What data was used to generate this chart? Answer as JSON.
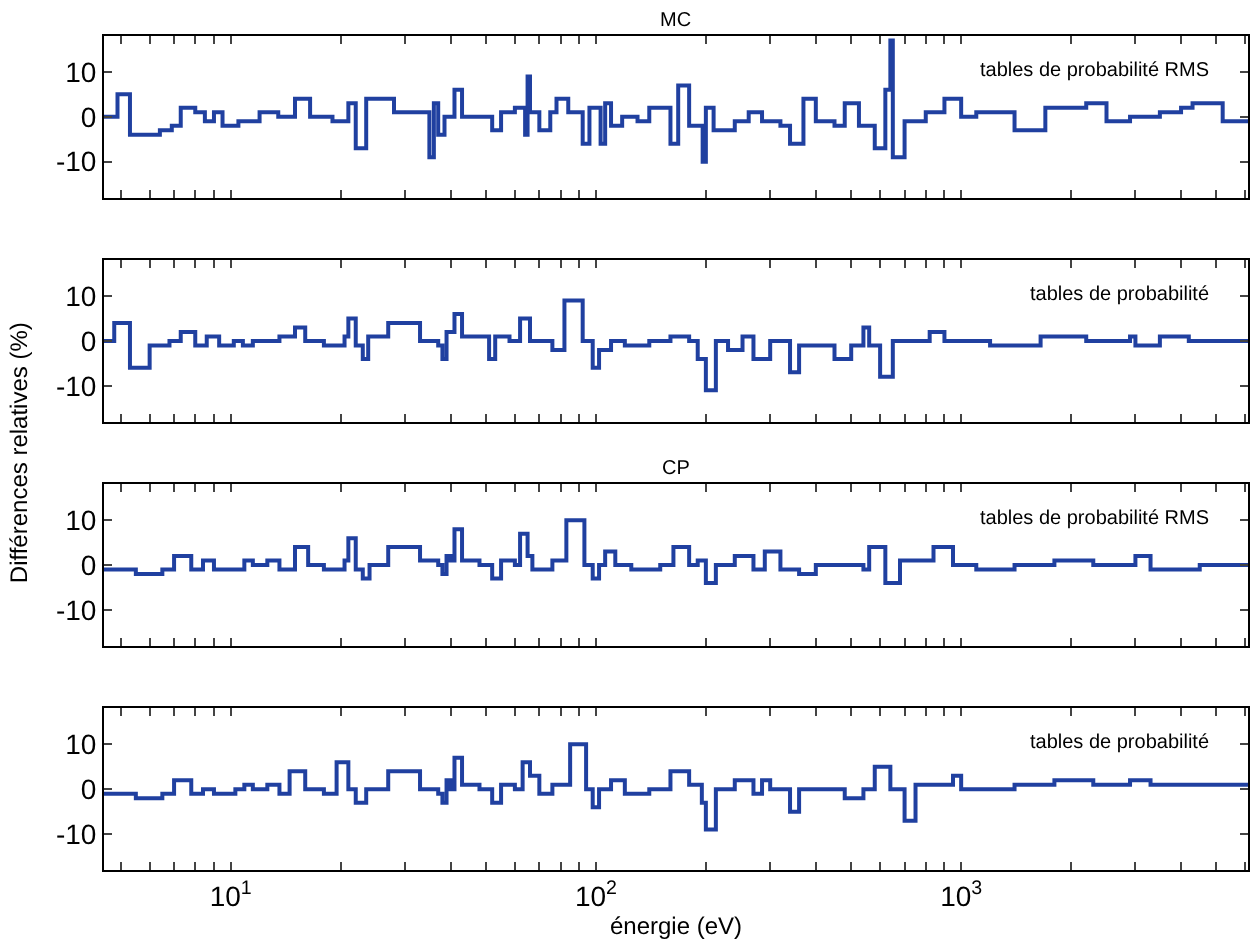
{
  "chart_data": [
    {
      "type": "step",
      "title": "MC",
      "color": "#2040a0",
      "log": "x",
      "line_style": "solid",
      "tick_labels": "y",
      "xlim": [
        4.5,
        6100
      ],
      "ylim": [
        -18,
        18
      ],
      "yticks": [
        -10,
        0,
        10
      ],
      "xticks": [
        {
          "value": 5,
          "label": null
        },
        {
          "value": 6,
          "label": null
        },
        {
          "value": 7,
          "label": null
        },
        {
          "value": 8,
          "label": null
        },
        {
          "value": 9,
          "label": null
        },
        {
          "value": 10,
          "label": "10$^{1}$"
        },
        {
          "value": 20,
          "label": null
        },
        {
          "value": 30,
          "label": null
        },
        {
          "value": 40,
          "label": null
        },
        {
          "value": 50,
          "label": null
        },
        {
          "value": 60,
          "label": null
        },
        {
          "value": 70,
          "label": null
        },
        {
          "value": 80,
          "label": null
        },
        {
          "value": 90,
          "label": null
        },
        {
          "value": 100,
          "label": "10$^{2}$"
        },
        {
          "value": 200,
          "label": null
        },
        {
          "value": 300,
          "label": null
        },
        {
          "value": 400,
          "label": null
        },
        {
          "value": 500,
          "label": null
        },
        {
          "value": 600,
          "label": null
        },
        {
          "value": 700,
          "label": null
        },
        {
          "value": 800,
          "label": null
        },
        {
          "value": 900,
          "label": null
        },
        {
          "value": 1000,
          "label": "10$^{3}$"
        },
        {
          "value": 2000,
          "label": null
        },
        {
          "value": 3000,
          "label": null
        },
        {
          "value": 4000,
          "label": null
        },
        {
          "value": 5000,
          "label": null
        },
        {
          "value": 6000,
          "label": null
        }
      ],
      "annotations": [
        "tables de probabilité RMS"
      ],
      "x": [
        4.5,
        4.9,
        5.3,
        6.4,
        6.9,
        7.3,
        8.0,
        8.5,
        9.0,
        9.5,
        10.5,
        12,
        13.5,
        15,
        16.5,
        19,
        21,
        22,
        23.5,
        28,
        35,
        36,
        37,
        38.5,
        41,
        43,
        52,
        55,
        60,
        64,
        65,
        66,
        70,
        75,
        78,
        84,
        92,
        96,
        103,
        106,
        110,
        118,
        130,
        140,
        160,
        168,
        180,
        196,
        200,
        210,
        240,
        262,
        285,
        320,
        340,
        370,
        400,
        450,
        480,
        525,
        580,
        620,
        640,
        650,
        700,
        800,
        900,
        1000,
        1100,
        1400,
        1700,
        2200,
        2500,
        2900,
        3500,
        4000,
        4300,
        5200,
        6100
      ],
      "values": [
        0,
        5,
        -4,
        -3,
        -2,
        2,
        1,
        -1,
        1,
        -2,
        -1,
        1,
        0,
        4,
        0,
        -1,
        3,
        -7,
        4,
        1,
        -9,
        3,
        -4,
        0,
        6,
        0,
        -3,
        1,
        2,
        -4,
        9,
        1,
        -3,
        1,
        4,
        1,
        -6,
        2,
        -6,
        3,
        -2,
        0,
        -1,
        2,
        -6,
        7,
        -2,
        -10,
        2,
        -3,
        -1,
        1,
        -1,
        -2,
        -6,
        4,
        -1,
        -2,
        3,
        -2,
        -7,
        6,
        17,
        -9,
        -1,
        1,
        4,
        0,
        1,
        -3,
        2,
        3,
        -1,
        0,
        1,
        2,
        3,
        -1,
        -1
      ]
    },
    {
      "type": "step",
      "color": "#2040a0",
      "log": "x",
      "line_style": "solid",
      "tick_labels": "y",
      "xlim": [
        4.5,
        6100
      ],
      "ylim": [
        -18,
        18
      ],
      "yticks": [
        -10,
        0,
        10
      ],
      "ylabel": "Différences relatives (%)",
      "xticks": [
        {
          "value": 5,
          "label": null
        },
        {
          "value": 6,
          "label": null
        },
        {
          "value": 7,
          "label": null
        },
        {
          "value": 8,
          "label": null
        },
        {
          "value": 9,
          "label": null
        },
        {
          "value": 10,
          "label": "10$^{1}$"
        },
        {
          "value": 20,
          "label": null
        },
        {
          "value": 30,
          "label": null
        },
        {
          "value": 40,
          "label": null
        },
        {
          "value": 50,
          "label": null
        },
        {
          "value": 60,
          "label": null
        },
        {
          "value": 70,
          "label": null
        },
        {
          "value": 80,
          "label": null
        },
        {
          "value": 90,
          "label": null
        },
        {
          "value": 100,
          "label": "10$^{2}$"
        },
        {
          "value": 200,
          "label": null
        },
        {
          "value": 300,
          "label": null
        },
        {
          "value": 400,
          "label": null
        },
        {
          "value": 500,
          "label": null
        },
        {
          "value": 600,
          "label": null
        },
        {
          "value": 700,
          "label": null
        },
        {
          "value": 800,
          "label": null
        },
        {
          "value": 900,
          "label": null
        },
        {
          "value": 1000,
          "label": "10$^{3}$"
        },
        {
          "value": 2000,
          "label": null
        },
        {
          "value": 3000,
          "label": null
        },
        {
          "value": 4000,
          "label": null
        },
        {
          "value": 5000,
          "label": null
        },
        {
          "value": 6000,
          "label": null
        }
      ],
      "annotations": [
        "tables de probabilité"
      ],
      "x": [
        4.5,
        4.8,
        5.3,
        6.0,
        6.8,
        7.3,
        8.0,
        8.6,
        9.3,
        10.2,
        10.8,
        11.5,
        13.6,
        15,
        16,
        18,
        20.5,
        21,
        22,
        23,
        23.8,
        27,
        33,
        37,
        38,
        39,
        41,
        43,
        47,
        51,
        53,
        58,
        62,
        66,
        76,
        82,
        92,
        98,
        102,
        110,
        120,
        140,
        160,
        180,
        190,
        200,
        213,
        230,
        252,
        270,
        300,
        340,
        360,
        450,
        500,
        540,
        560,
        600,
        650,
        820,
        900,
        1000,
        1200,
        1650,
        2200,
        2900,
        3000,
        3500,
        4200,
        6100
      ],
      "values": [
        0,
        4,
        -6,
        -1,
        0,
        2,
        -1,
        1,
        -1,
        0,
        -1,
        0,
        1,
        3,
        0,
        -1,
        1,
        5,
        -1,
        -4,
        1,
        4,
        0,
        -1,
        -4,
        2,
        6,
        1,
        1,
        -4,
        1,
        0,
        5,
        0,
        -2,
        9,
        0,
        -6,
        -2,
        0,
        -1,
        0,
        1,
        0,
        -4,
        -11,
        0,
        -2,
        1,
        -4,
        0,
        -7,
        -1,
        -4,
        -1,
        3,
        -1,
        -8,
        0,
        2,
        0,
        0,
        -1,
        1,
        0,
        1,
        -1,
        1,
        0,
        0
      ]
    },
    {
      "type": "step",
      "title": "CP",
      "color": "#2040a0",
      "log": "x",
      "line_style": "solid",
      "tick_labels": "y",
      "xlim": [
        4.5,
        6100
      ],
      "ylim": [
        -18,
        18
      ],
      "yticks": [
        -10,
        0,
        10
      ],
      "xticks": [
        {
          "value": 5,
          "label": null
        },
        {
          "value": 6,
          "label": null
        },
        {
          "value": 7,
          "label": null
        },
        {
          "value": 8,
          "label": null
        },
        {
          "value": 9,
          "label": null
        },
        {
          "value": 10,
          "label": "10$^{1}$"
        },
        {
          "value": 20,
          "label": null
        },
        {
          "value": 30,
          "label": null
        },
        {
          "value": 40,
          "label": null
        },
        {
          "value": 50,
          "label": null
        },
        {
          "value": 60,
          "label": null
        },
        {
          "value": 70,
          "label": null
        },
        {
          "value": 80,
          "label": null
        },
        {
          "value": 90,
          "label": null
        },
        {
          "value": 100,
          "label": "10$^{2}$"
        },
        {
          "value": 200,
          "label": null
        },
        {
          "value": 300,
          "label": null
        },
        {
          "value": 400,
          "label": null
        },
        {
          "value": 500,
          "label": null
        },
        {
          "value": 600,
          "label": null
        },
        {
          "value": 700,
          "label": null
        },
        {
          "value": 800,
          "label": null
        },
        {
          "value": 900,
          "label": null
        },
        {
          "value": 1000,
          "label": "10$^{3}$"
        },
        {
          "value": 2000,
          "label": null
        },
        {
          "value": 3000,
          "label": null
        },
        {
          "value": 4000,
          "label": null
        },
        {
          "value": 5000,
          "label": null
        },
        {
          "value": 6000,
          "label": null
        }
      ],
      "annotations": [
        "tables de probabilité RMS"
      ],
      "x": [
        4.5,
        5.5,
        6.5,
        7.0,
        7.8,
        8.4,
        9.0,
        10.3,
        10.9,
        11.5,
        12.6,
        13.6,
        15,
        16.3,
        18,
        20.5,
        21,
        22,
        23,
        24,
        27,
        33,
        37,
        38,
        39,
        40,
        41,
        43,
        48,
        52,
        55,
        60,
        62,
        65,
        67,
        76,
        83,
        93,
        98,
        102,
        106,
        113,
        125,
        150,
        163,
        180,
        190,
        200,
        213,
        240,
        270,
        290,
        320,
        360,
        400,
        540,
        560,
        620,
        680,
        840,
        950,
        1100,
        1400,
        1800,
        2300,
        3000,
        3300,
        4500,
        6100
      ],
      "values": [
        -1,
        -2,
        -1,
        2,
        -1,
        1,
        -1,
        -1,
        1,
        0,
        1,
        -1,
        4,
        0,
        -1,
        1,
        6,
        -1,
        -3,
        0,
        4,
        1,
        0,
        -2,
        2,
        1,
        8,
        1,
        0,
        -3,
        1,
        0,
        7,
        2,
        -1,
        1,
        10,
        0,
        -3,
        0,
        3,
        0,
        -1,
        0,
        4,
        0,
        1,
        -4,
        0,
        2,
        -1,
        3,
        -1,
        -2,
        0,
        -1,
        4,
        -4,
        1,
        4,
        0,
        -1,
        0,
        1,
        0,
        2,
        -1,
        0,
        0
      ]
    },
    {
      "type": "step",
      "color": "#2040a0",
      "log": "x",
      "line_style": "solid",
      "xlim": [
        4.5,
        6100
      ],
      "ylim": [
        -18,
        18
      ],
      "yticks": [
        -10,
        0,
        10
      ],
      "xlabel": "énergie (eV)",
      "xticks": [
        {
          "value": 5,
          "label": null
        },
        {
          "value": 6,
          "label": null
        },
        {
          "value": 7,
          "label": null
        },
        {
          "value": 8,
          "label": null
        },
        {
          "value": 9,
          "label": null
        },
        {
          "value": 10,
          "label": "10$^{1}$"
        },
        {
          "value": 20,
          "label": null
        },
        {
          "value": 30,
          "label": null
        },
        {
          "value": 40,
          "label": null
        },
        {
          "value": 50,
          "label": null
        },
        {
          "value": 60,
          "label": null
        },
        {
          "value": 70,
          "label": null
        },
        {
          "value": 80,
          "label": null
        },
        {
          "value": 90,
          "label": null
        },
        {
          "value": 100,
          "label": "10$^{2}$"
        },
        {
          "value": 200,
          "label": null
        },
        {
          "value": 300,
          "label": null
        },
        {
          "value": 400,
          "label": null
        },
        {
          "value": 500,
          "label": null
        },
        {
          "value": 600,
          "label": null
        },
        {
          "value": 700,
          "label": null
        },
        {
          "value": 800,
          "label": null
        },
        {
          "value": 900,
          "label": null
        },
        {
          "value": 1000,
          "label": "10$^{3}$"
        },
        {
          "value": 2000,
          "label": null
        },
        {
          "value": 3000,
          "label": null
        },
        {
          "value": 4000,
          "label": null
        },
        {
          "value": 5000,
          "label": null
        },
        {
          "value": 6000,
          "label": null
        }
      ],
      "annotations": [
        "tables de probabilité"
      ],
      "x": [
        4.5,
        5.5,
        6.5,
        7.0,
        7.8,
        8.4,
        9.0,
        10.3,
        10.9,
        11.5,
        12.6,
        13.6,
        14.5,
        16,
        18,
        19.5,
        21,
        22,
        23.5,
        27,
        33,
        37,
        38,
        39,
        40,
        41,
        43,
        48,
        52,
        55,
        60,
        63,
        66,
        70,
        76,
        85,
        94,
        98,
        102,
        110,
        120,
        140,
        160,
        180,
        195,
        200,
        213,
        240,
        270,
        285,
        300,
        340,
        360,
        480,
        540,
        580,
        640,
        700,
        750,
        950,
        1000,
        1400,
        1800,
        2300,
        2900,
        3300,
        4000,
        6100
      ],
      "values": [
        -1,
        -2,
        -1,
        2,
        -1,
        0,
        -1,
        0,
        1,
        0,
        1,
        -1,
        4,
        0,
        -1,
        6,
        0,
        -3,
        0,
        4,
        0,
        -1,
        -3,
        2,
        0,
        7,
        1,
        0,
        -3,
        1,
        0,
        6,
        3,
        -1,
        1,
        10,
        0,
        -4,
        0,
        2,
        -1,
        0,
        4,
        1,
        -3,
        -9,
        0,
        2,
        -1,
        2,
        0,
        -5,
        0,
        -2,
        0,
        5,
        0,
        -7,
        1,
        3,
        0,
        1,
        2,
        1,
        2,
        1,
        1,
        1
      ]
    }
  ]
}
